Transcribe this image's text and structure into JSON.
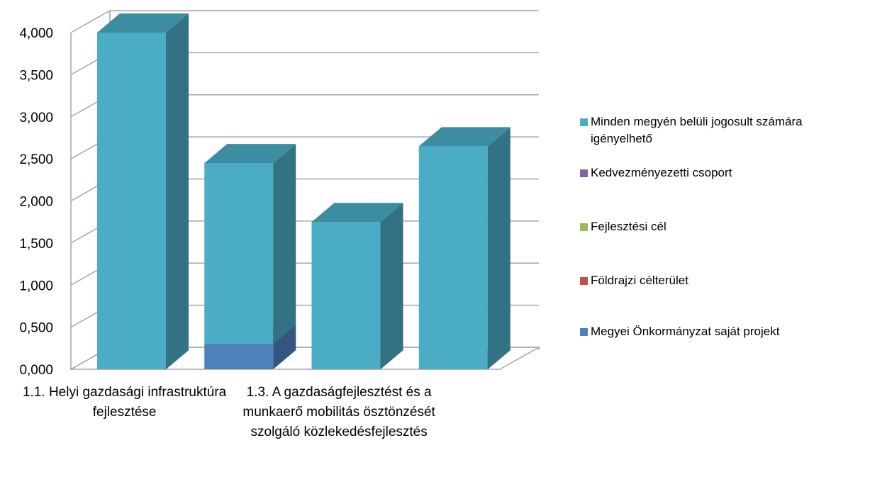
{
  "chart_data": {
    "type": "bar3d_stacked",
    "categories": [
      "1.1. Helyi gazdasági infrastruktúra fejlesztése",
      null,
      "1.3. A gazdaságfejlesztést és a munkaerő mobilitás ösztönzését szolgáló közlekedésfejlesztés",
      null
    ],
    "series": [
      {
        "name": "Minden megyén belüli jogosult számára igényelhető",
        "color": "#4bacc6",
        "values": [
          4.0,
          2.15,
          1.75,
          2.65
        ]
      },
      {
        "name": "Kedvezményezetti csoport",
        "color": "#8064a2",
        "values": [
          0,
          0,
          0,
          0
        ]
      },
      {
        "name": "Fejlesztési cél",
        "color": "#9bbb59",
        "values": [
          0,
          0,
          0,
          0
        ]
      },
      {
        "name": "Földrajzi célterület",
        "color": "#c0504d",
        "values": [
          0,
          0,
          0,
          0
        ]
      },
      {
        "name": "Megyei Önkormányzat saját projekt",
        "color": "#4f81bd",
        "values": [
          0,
          0.3,
          0,
          0
        ]
      }
    ],
    "ylim": [
      0,
      4
    ],
    "yticks": [
      {
        "value": 0,
        "label": "0,000"
      },
      {
        "value": 0.5,
        "label": "0,500"
      },
      {
        "value": 1,
        "label": "1,000"
      },
      {
        "value": 1.5,
        "label": "1,500"
      },
      {
        "value": 2,
        "label": "2,000"
      },
      {
        "value": 2.5,
        "label": "2,500"
      },
      {
        "value": 3,
        "label": "3,000"
      },
      {
        "value": 3.5,
        "label": "3,500"
      },
      {
        "value": 4,
        "label": "4,000"
      }
    ],
    "grid": true,
    "legend": "right"
  }
}
